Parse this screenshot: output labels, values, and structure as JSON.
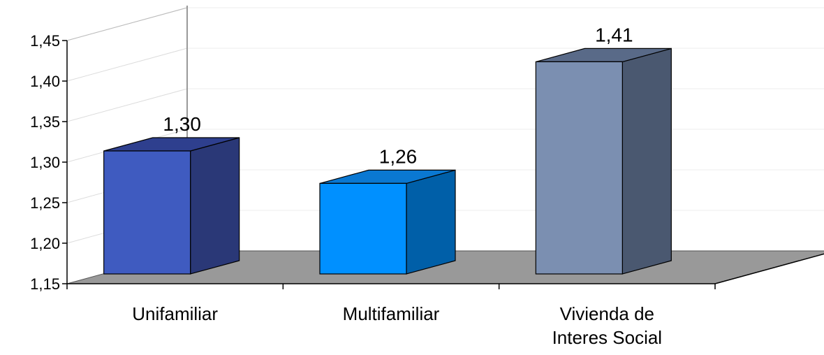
{
  "chart_data": {
    "type": "bar",
    "categories": [
      "Unifamiliar",
      "Multifamiliar",
      "Vivienda de Interes Social"
    ],
    "category_lines": [
      [
        "Unifamiliar"
      ],
      [
        "Multifamiliar"
      ],
      [
        "Vivienda de",
        "Interes Social"
      ]
    ],
    "values": [
      1.3,
      1.26,
      1.41
    ],
    "data_labels": [
      "1,30",
      "1,26",
      "1,41"
    ],
    "yticks": [
      1.15,
      1.2,
      1.25,
      1.3,
      1.35,
      1.4,
      1.45
    ],
    "ytick_labels": [
      "1,15",
      "1,20",
      "1,25",
      "1,30",
      "1,35",
      "1,40",
      "1,45"
    ],
    "ylim": [
      1.15,
      1.45
    ],
    "title": "",
    "xlabel": "",
    "ylabel": "",
    "grid": true,
    "legend": "none",
    "style": "3d-column",
    "colors": {
      "bars": [
        {
          "front": "#3f5bc0",
          "side": "#2a3877",
          "top": "#2e3f8e"
        },
        {
          "front": "#0090ff",
          "side": "#005fa8",
          "top": "#0a78d2"
        },
        {
          "front": "#7b8fb1",
          "side": "#4a5870",
          "top": "#596a88"
        }
      ],
      "floor": "#999999",
      "grid": "#dcdcdc",
      "axis": "#000000"
    }
  }
}
